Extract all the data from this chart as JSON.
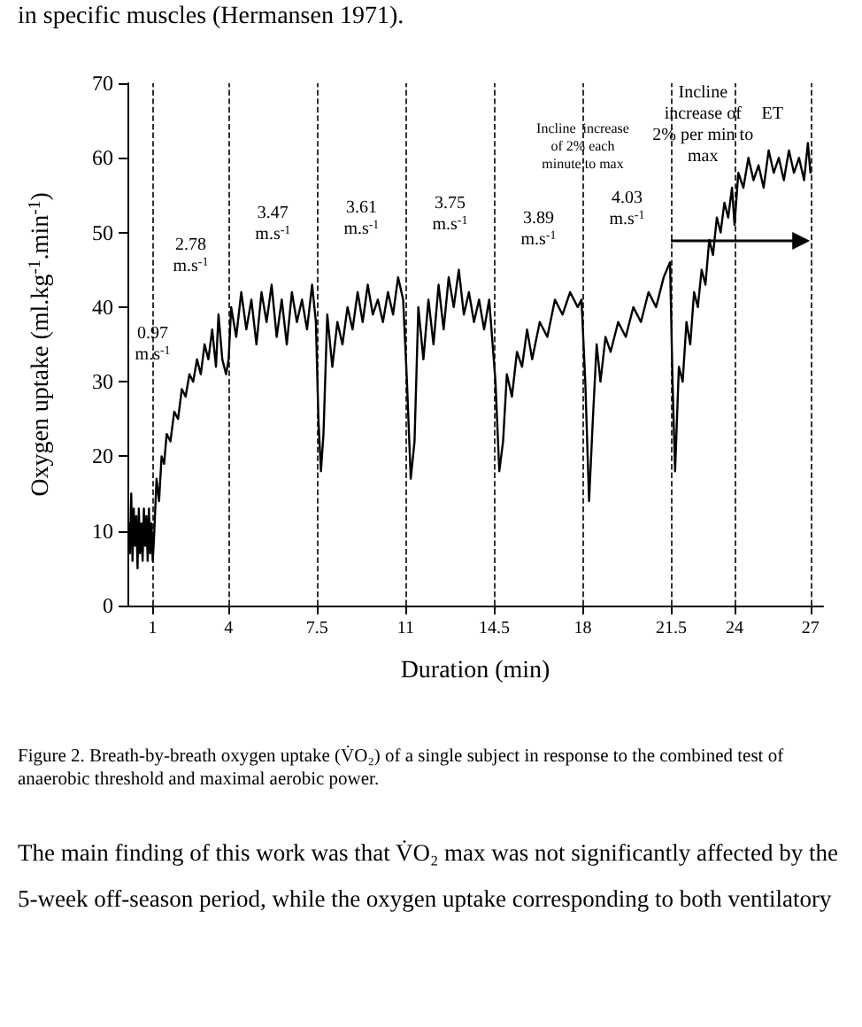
{
  "chart_data": {
    "type": "line",
    "xlabel": "Duration (min)",
    "ylabel": "Oxygen uptake (ml.kg$^{-1}$.min$^{-1}$)",
    "xlim": [
      0,
      27.5
    ],
    "xticks": [
      1,
      4,
      7.5,
      11,
      14.5,
      18,
      21.5,
      24,
      27
    ],
    "ylim": [
      0,
      70
    ],
    "yticks": [
      0,
      10,
      20,
      30,
      40,
      50,
      60,
      70
    ],
    "grid": false,
    "marker": "none",
    "line_style": "solid",
    "series": [
      {
        "color": "#000000",
        "x": [
          0.05,
          0.1,
          0.15,
          0.2,
          0.25,
          0.3,
          0.35,
          0.4,
          0.45,
          0.5,
          0.55,
          0.6,
          0.65,
          0.7,
          0.75,
          0.8,
          0.85,
          0.9,
          0.95,
          1.0,
          1.05,
          1.15,
          1.25,
          1.35,
          1.45,
          1.55,
          1.7,
          1.85,
          2.0,
          2.15,
          2.3,
          2.45,
          2.6,
          2.75,
          2.9,
          3.05,
          3.2,
          3.35,
          3.5,
          3.6,
          3.75,
          3.9,
          4.0,
          4.1,
          4.3,
          4.5,
          4.7,
          4.9,
          5.1,
          5.3,
          5.5,
          5.7,
          5.9,
          6.1,
          6.3,
          6.5,
          6.7,
          6.9,
          7.1,
          7.3,
          7.45,
          7.55,
          7.65,
          7.75,
          7.9,
          8.1,
          8.3,
          8.5,
          8.7,
          8.9,
          9.1,
          9.3,
          9.5,
          9.7,
          9.9,
          10.1,
          10.3,
          10.5,
          10.7,
          10.9,
          11.05,
          11.2,
          11.35,
          11.5,
          11.7,
          11.9,
          12.1,
          12.3,
          12.5,
          12.7,
          12.9,
          13.1,
          13.3,
          13.5,
          13.7,
          13.9,
          14.1,
          14.3,
          14.55,
          14.7,
          14.85,
          15.0,
          15.2,
          15.4,
          15.6,
          15.8,
          16.0,
          16.3,
          16.6,
          16.9,
          17.2,
          17.5,
          17.8,
          17.95,
          18.1,
          18.25,
          18.4,
          18.55,
          18.7,
          18.9,
          19.1,
          19.4,
          19.7,
          20.0,
          20.3,
          20.6,
          20.9,
          21.2,
          21.45,
          21.55,
          21.65,
          21.8,
          21.95,
          22.1,
          22.25,
          22.4,
          22.55,
          22.7,
          22.85,
          23.0,
          23.15,
          23.3,
          23.45,
          23.6,
          23.75,
          23.9,
          24.0,
          24.15,
          24.35,
          24.55,
          24.75,
          24.95,
          25.15,
          25.35,
          25.55,
          25.75,
          25.95,
          26.15,
          26.35,
          26.55,
          26.75,
          26.9,
          27.0
        ],
        "values": [
          11,
          7,
          15,
          6,
          13,
          8,
          12,
          5,
          13,
          7,
          11,
          6,
          13,
          8,
          12,
          6,
          13,
          7,
          11,
          6,
          9,
          17,
          14,
          20,
          19,
          23,
          22,
          26,
          25,
          29,
          28,
          31,
          30,
          33,
          31,
          35,
          33,
          37,
          32,
          39,
          33,
          31,
          33,
          40,
          36,
          42,
          37,
          41,
          35,
          42,
          38,
          43,
          36,
          41,
          35,
          42,
          38,
          41,
          37,
          43,
          38,
          25,
          18,
          23,
          39,
          32,
          38,
          35,
          40,
          37,
          42,
          38,
          43,
          39,
          41,
          38,
          42,
          39,
          44,
          41,
          30,
          17,
          22,
          40,
          33,
          41,
          35,
          43,
          37,
          44,
          40,
          45,
          39,
          42,
          38,
          41,
          37,
          41,
          30,
          18,
          22,
          31,
          28,
          34,
          32,
          37,
          33,
          38,
          36,
          41,
          39,
          42,
          40,
          41,
          30,
          14,
          25,
          35,
          30,
          36,
          34,
          38,
          36,
          40,
          38,
          42,
          40,
          44,
          46,
          30,
          18,
          32,
          30,
          38,
          35,
          42,
          40,
          45,
          43,
          49,
          47,
          52,
          50,
          54,
          52,
          56,
          51,
          58,
          56,
          60,
          57,
          59,
          56,
          61,
          58,
          60,
          57,
          61,
          58,
          60,
          57,
          62,
          58
        ]
      }
    ],
    "ref_lines": [
      {
        "axis": "x",
        "value": 1,
        "color": "#000000",
        "line_style": "dashed"
      },
      {
        "axis": "x",
        "value": 4,
        "color": "#000000",
        "line_style": "dashed"
      },
      {
        "axis": "x",
        "value": 7.5,
        "color": "#000000",
        "line_style": "dashed"
      },
      {
        "axis": "x",
        "value": 11,
        "color": "#000000",
        "line_style": "dashed"
      },
      {
        "axis": "x",
        "value": 14.5,
        "color": "#000000",
        "line_style": "dashed"
      },
      {
        "axis": "x",
        "value": 18,
        "color": "#000000",
        "line_style": "dashed"
      },
      {
        "axis": "x",
        "value": 21.5,
        "color": "#000000",
        "line_style": "dashed"
      },
      {
        "axis": "x",
        "value": 24,
        "color": "#000000",
        "line_style": "dashed"
      },
      {
        "axis": "x",
        "value": 27,
        "color": "#000000",
        "line_style": "dashed"
      }
    ],
    "annotations": [
      "in specific muscles (Hermansen 1971).",
      "0.97\nm.s$^{-1}$",
      "2.78\nm.s$^{-1}$",
      "3.47\nm.s$^{-1}$",
      "3.61\nm.s$^{-1}$",
      "3.75\nm.s$^{-1}$",
      "3.89\nm.s$^{-1}$",
      "4.03\nm.s$^{-1}$",
      "Incline  increase\nof 2% each\nminute to max",
      "Incline\nincrease of\n2% per min to\nmax",
      "ET",
      "Figure 2. Breath-by-breath oxygen uptake (V̇O₂) of a single subject in response to the combined test of anaerobic threshold and maximal aerobic power.",
      "The main finding of this work was that V̇O₂ max was not significantly affected by the 5-week off-season period, while the oxygen uptake corresponding to both ventilatory"
    ]
  }
}
